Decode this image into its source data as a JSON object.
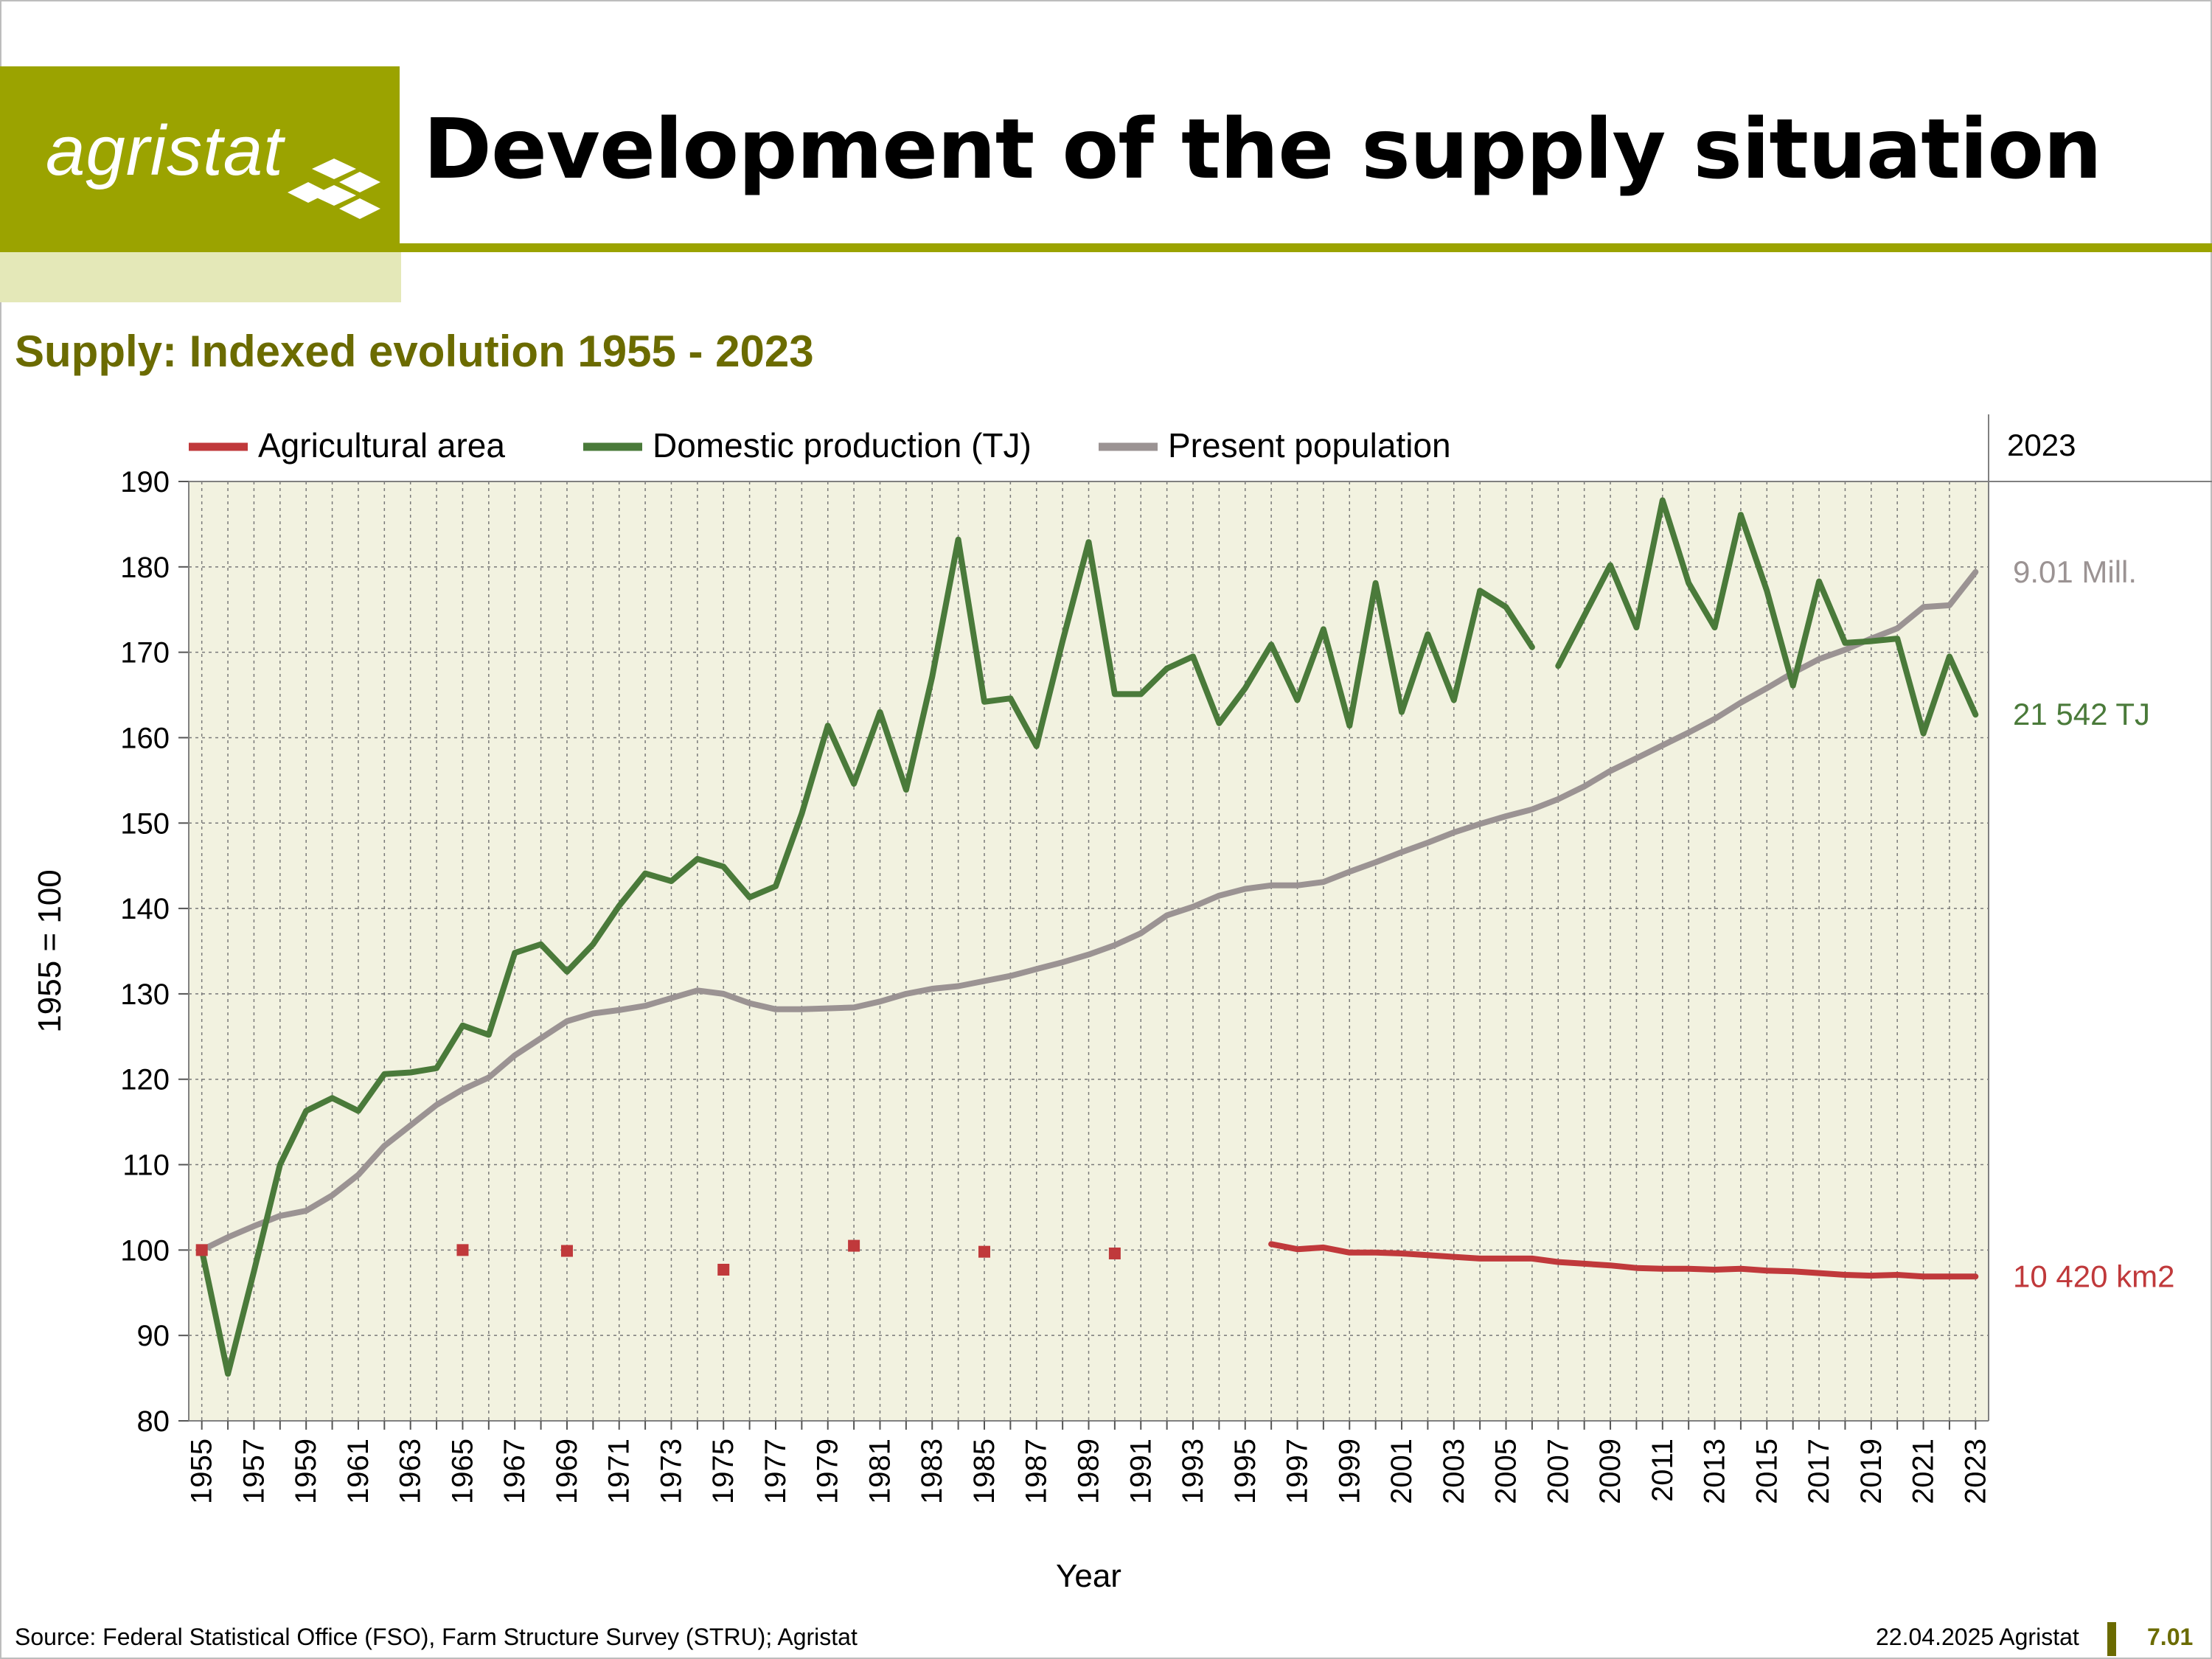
{
  "header": {
    "logo_text": "agristat",
    "title": "Development of the supply situation"
  },
  "subtitle": "Supply: Indexed evolution 1955 - 2023",
  "chart_data": {
    "type": "line",
    "title": "Supply: Indexed evolution 1955 - 2023",
    "xlabel": "Year",
    "ylabel": "1955 = 100",
    "ylim": [
      80,
      190
    ],
    "yticks": [
      80,
      90,
      100,
      110,
      120,
      130,
      140,
      150,
      160,
      170,
      180,
      190
    ],
    "xticks": [
      1955,
      1957,
      1959,
      1961,
      1963,
      1965,
      1967,
      1969,
      1971,
      1973,
      1975,
      1977,
      1979,
      1981,
      1983,
      1985,
      1987,
      1989,
      1991,
      1993,
      1995,
      1997,
      1999,
      2001,
      2003,
      2005,
      2007,
      2009,
      2011,
      2013,
      2015,
      2017,
      2019,
      2021,
      2023
    ],
    "grid": true,
    "legend": "top",
    "side_header": "2023",
    "series": [
      {
        "name": "Agricultural area",
        "color": "#c0393b",
        "end_label": "10 420 km2",
        "markers": [
          [
            1955,
            100
          ],
          [
            1965,
            100
          ],
          [
            1969,
            99.9
          ],
          [
            1975,
            97.7
          ],
          [
            1980,
            100.5
          ],
          [
            1985,
            99.8
          ],
          [
            1990,
            99.6
          ]
        ],
        "points": [
          [
            1996,
            100.7
          ],
          [
            1997,
            100.1
          ],
          [
            1998,
            100.3
          ],
          [
            1999,
            99.7
          ],
          [
            2000,
            99.7
          ],
          [
            2001,
            99.6
          ],
          [
            2002,
            99.4
          ],
          [
            2003,
            99.2
          ],
          [
            2004,
            99.0
          ],
          [
            2005,
            99.0
          ],
          [
            2006,
            99.0
          ],
          [
            2007,
            98.6
          ],
          [
            2008,
            98.4
          ],
          [
            2009,
            98.2
          ],
          [
            2010,
            97.9
          ],
          [
            2011,
            97.8
          ],
          [
            2012,
            97.8
          ],
          [
            2013,
            97.7
          ],
          [
            2014,
            97.8
          ],
          [
            2015,
            97.6
          ],
          [
            2016,
            97.5
          ],
          [
            2017,
            97.3
          ],
          [
            2018,
            97.1
          ],
          [
            2019,
            97.0
          ],
          [
            2020,
            97.1
          ],
          [
            2021,
            96.9
          ],
          [
            2022,
            96.9
          ],
          [
            2023,
            96.9
          ]
        ]
      },
      {
        "name": "Domestic production (TJ)",
        "color": "#4a7a3a",
        "end_label": "21 542 TJ",
        "points": [
          [
            1955,
            100
          ],
          [
            1956,
            85.5
          ],
          [
            1957,
            97.5
          ],
          [
            1958,
            110
          ],
          [
            1959,
            116.3
          ],
          [
            1960,
            117.8
          ],
          [
            1961,
            116.3
          ],
          [
            1962,
            120.6
          ],
          [
            1963,
            120.8
          ],
          [
            1964,
            121.3
          ],
          [
            1965,
            126.3
          ],
          [
            1966,
            125.2
          ],
          [
            1967,
            134.8
          ],
          [
            1968,
            135.8
          ],
          [
            1969,
            132.6
          ],
          [
            1970,
            135.8
          ],
          [
            1971,
            140.3
          ],
          [
            1972,
            144.1
          ],
          [
            1973,
            143.2
          ],
          [
            1974,
            145.8
          ],
          [
            1975,
            144.9
          ],
          [
            1976,
            141.3
          ],
          [
            1977,
            142.6
          ],
          [
            1978,
            151.1
          ],
          [
            1979,
            161.4
          ],
          [
            1980,
            154.6
          ],
          [
            1981,
            163
          ],
          [
            1982,
            153.9
          ],
          [
            1983,
            167.1
          ],
          [
            1984,
            183.2
          ],
          [
            1985,
            164.2
          ],
          [
            1986,
            164.6
          ],
          [
            1987,
            159
          ],
          [
            1988,
            171.3
          ],
          [
            1989,
            182.9
          ],
          [
            1990,
            165.1
          ],
          [
            1991,
            165.1
          ],
          [
            1992,
            168.1
          ],
          [
            1993,
            169.5
          ],
          [
            1994,
            161.7
          ],
          [
            1995,
            165.8
          ],
          [
            1996,
            170.9
          ],
          [
            1997,
            164.4
          ],
          [
            1998,
            172.7
          ],
          [
            1999,
            161.4
          ],
          [
            2000,
            178.1
          ],
          [
            2001,
            163
          ],
          [
            2002,
            172.1
          ],
          [
            2003,
            164.4
          ],
          [
            2004,
            177.2
          ],
          [
            2005,
            175.3
          ],
          [
            2006,
            170.6
          ],
          [
            2007,
            null
          ],
          [
            2008,
            174.3
          ],
          [
            2009,
            180.2
          ],
          [
            2010,
            172.9
          ],
          [
            2011,
            187.8
          ],
          [
            2012,
            178.1
          ],
          [
            2013,
            172.9
          ],
          [
            2014,
            186.1
          ],
          [
            2015,
            177.2
          ],
          [
            2016,
            166.1
          ],
          [
            2017,
            178.3
          ],
          [
            2018,
            171.1
          ],
          [
            2019,
            171.3
          ],
          [
            2020,
            171.6
          ],
          [
            2021,
            160.5
          ],
          [
            2022,
            169.5
          ],
          [
            2023,
            162.7
          ]
        ],
        "extra_segment_start": [
          2007,
          168.4
        ]
      },
      {
        "name": "Present population",
        "color": "#9b9393",
        "end_label": "9.01 Mill.",
        "points": [
          [
            1955,
            100
          ],
          [
            1956,
            101.5
          ],
          [
            1957,
            102.8
          ],
          [
            1958,
            104
          ],
          [
            1959,
            104.6
          ],
          [
            1960,
            106.4
          ],
          [
            1961,
            108.8
          ],
          [
            1962,
            112.2
          ],
          [
            1963,
            114.6
          ],
          [
            1964,
            117
          ],
          [
            1965,
            118.8
          ],
          [
            1966,
            120.2
          ],
          [
            1967,
            122.8
          ],
          [
            1968,
            124.8
          ],
          [
            1969,
            126.8
          ],
          [
            1970,
            127.7
          ],
          [
            1971,
            128.1
          ],
          [
            1972,
            128.6
          ],
          [
            1973,
            129.5
          ],
          [
            1974,
            130.4
          ],
          [
            1975,
            130
          ],
          [
            1976,
            128.9
          ],
          [
            1977,
            128.2
          ],
          [
            1978,
            128.2
          ],
          [
            1979,
            128.3
          ],
          [
            1980,
            128.4
          ],
          [
            1981,
            129.1
          ],
          [
            1982,
            130
          ],
          [
            1983,
            130.6
          ],
          [
            1984,
            130.9
          ],
          [
            1985,
            131.5
          ],
          [
            1986,
            132.1
          ],
          [
            1987,
            132.9
          ],
          [
            1988,
            133.7
          ],
          [
            1989,
            134.6
          ],
          [
            1990,
            135.7
          ],
          [
            1991,
            137.1
          ],
          [
            1992,
            139.2
          ],
          [
            1993,
            140.2
          ],
          [
            1994,
            141.5
          ],
          [
            1995,
            142.3
          ],
          [
            1996,
            142.7
          ],
          [
            1997,
            142.7
          ],
          [
            1998,
            143.1
          ],
          [
            1999,
            144.3
          ],
          [
            2000,
            145.4
          ],
          [
            2001,
            146.6
          ],
          [
            2002,
            147.7
          ],
          [
            2003,
            148.9
          ],
          [
            2004,
            149.9
          ],
          [
            2005,
            150.8
          ],
          [
            2006,
            151.6
          ],
          [
            2007,
            152.8
          ],
          [
            2008,
            154.3
          ],
          [
            2009,
            156.1
          ],
          [
            2010,
            157.6
          ],
          [
            2011,
            159.1
          ],
          [
            2012,
            160.6
          ],
          [
            2013,
            162.2
          ],
          [
            2014,
            164.1
          ],
          [
            2015,
            165.8
          ],
          [
            2016,
            167.6
          ],
          [
            2017,
            169.2
          ],
          [
            2018,
            170.3
          ],
          [
            2019,
            171.6
          ],
          [
            2020,
            172.8
          ],
          [
            2021,
            175.3
          ],
          [
            2022,
            175.5
          ],
          [
            2023,
            179.4
          ]
        ]
      }
    ]
  },
  "footer": {
    "source": "Source: Federal Statistical Office (FSO), Farm Structure Survey (STRU); Agristat",
    "date": "22.04.2025 Agristat",
    "page": "7.01"
  },
  "colors": {
    "brand_olive": "#9ba300",
    "brand_light": "#e4e8b8",
    "subtitle": "#6b6b00",
    "plot_bg": "#f2f2e0"
  }
}
